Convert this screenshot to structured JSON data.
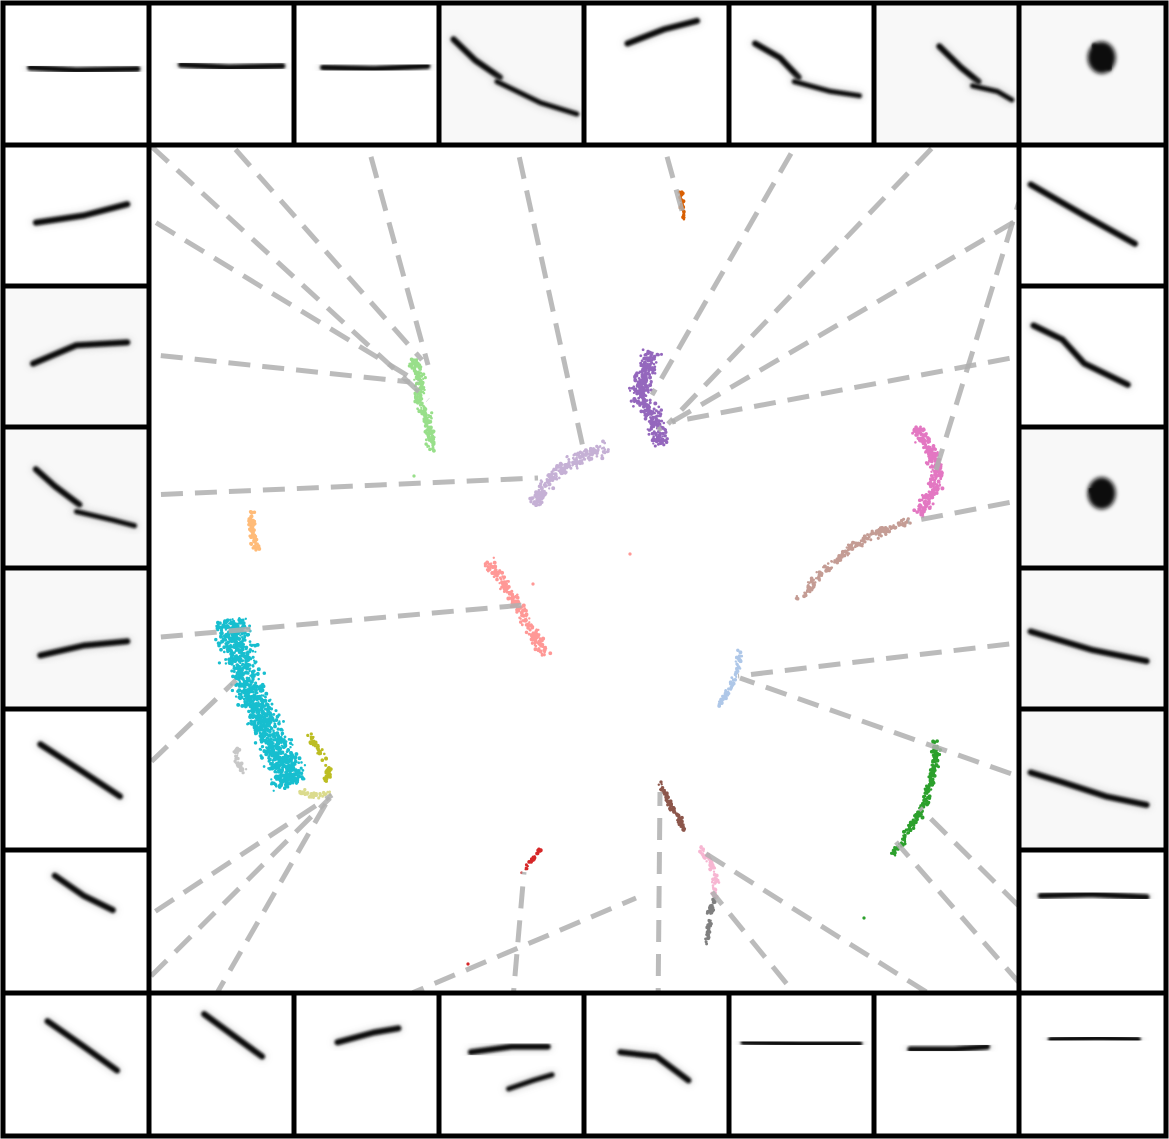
{
  "figure": {
    "kind": "embedding-scatter-with-thumbnail-border",
    "background": "#ffffff",
    "frame_color": "#000000",
    "leader_color": "#b0b0b0",
    "thumbnail_ink": "#111111",
    "thumbnail_bg": "#f8f8f8"
  },
  "clusters": [
    {
      "name": "cluster-light-green",
      "color": "#98df8a"
    },
    {
      "name": "cluster-orange",
      "color": "#d95f02"
    },
    {
      "name": "cluster-purple",
      "color": "#9467bd"
    },
    {
      "name": "cluster-lavender",
      "color": "#c5b0d5"
    },
    {
      "name": "cluster-pink",
      "color": "#e377c2"
    },
    {
      "name": "cluster-tan",
      "color": "#c49c94"
    },
    {
      "name": "cluster-peach",
      "color": "#ffbb78"
    },
    {
      "name": "cluster-salmon",
      "color": "#ff9896"
    },
    {
      "name": "cluster-cyan",
      "color": "#17becf"
    },
    {
      "name": "cluster-olive",
      "color": "#bcbd22"
    },
    {
      "name": "cluster-pale-olive",
      "color": "#dbdb8d"
    },
    {
      "name": "cluster-light-gray",
      "color": "#c7c7c7"
    },
    {
      "name": "cluster-light-blue",
      "color": "#aec7e8"
    },
    {
      "name": "cluster-green",
      "color": "#2ca02c"
    },
    {
      "name": "cluster-brown",
      "color": "#8c564b"
    },
    {
      "name": "cluster-light-pink",
      "color": "#f7b6d2"
    },
    {
      "name": "cluster-gray",
      "color": "#7f7f7f"
    },
    {
      "name": "cluster-red",
      "color": "#d62728"
    }
  ]
}
